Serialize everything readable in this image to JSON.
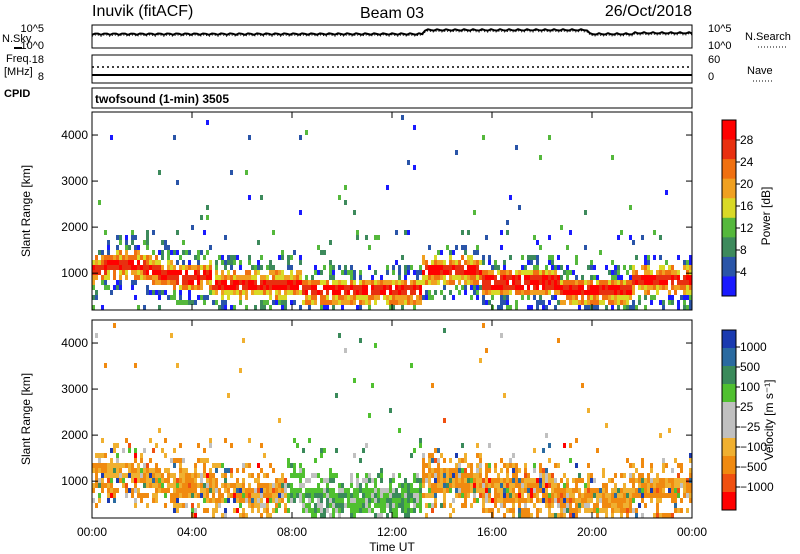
{
  "header": {
    "station": "Inuvik (fitACF)",
    "beam": "Beam 03",
    "date": "26/Oct/2018"
  },
  "noise_panel": {
    "left_label": "N.Sky",
    "left_ticks": [
      "10^5",
      "10^0"
    ],
    "right_label": "N.Search",
    "right_ticks": [
      "10^5",
      "10^0"
    ]
  },
  "freq_panel": {
    "left_label_1": "Freq.",
    "left_label_2": "[MHz]",
    "left_ticks": [
      "18",
      "8"
    ],
    "cpid_label": "CPID",
    "right_label": "Nave",
    "right_ticks": [
      "60",
      "0"
    ]
  },
  "program": "twofsound (1-min) 3505",
  "colors": {
    "power_scale": [
      "#1a1aff",
      "#2a55a8",
      "#3d8a5c",
      "#55b83c",
      "#d9d926",
      "#f0a020",
      "#f07010",
      "#e83010",
      "#ff0000"
    ],
    "velocity_scale": [
      "#ff0000",
      "#f05010",
      "#f08a10",
      "#f0b030",
      "#c0c0c0",
      "#c0c0c0",
      "#50c030",
      "#3a8a5a",
      "#2a6aa0",
      "#1a3ab0"
    ]
  },
  "chart_data": [
    {
      "type": "heatmap",
      "quantity": "Power",
      "ylabel": "Slant Range [km]",
      "y_ticks": [
        "1000",
        "2000",
        "3000",
        "4000"
      ],
      "ylim": [
        200,
        4500
      ],
      "x_ticks": [
        "00:00",
        "04:00",
        "08:00",
        "12:00",
        "16:00",
        "20:00",
        "00:00"
      ],
      "colorbar_label": "Power [dB]",
      "colorbar_ticks": [
        "4",
        "8",
        "12",
        "16",
        "20",
        "24",
        "28"
      ],
      "clim": [
        0,
        32
      ]
    },
    {
      "type": "heatmap",
      "quantity": "Velocity",
      "ylabel": "Slant Range [km]",
      "y_ticks": [
        "1000",
        "2000",
        "3000",
        "4000"
      ],
      "ylim": [
        200,
        4500
      ],
      "x_ticks": [
        "00:00",
        "04:00",
        "08:00",
        "12:00",
        "16:00",
        "20:00",
        "00:00"
      ],
      "xlabel": "Time UT",
      "colorbar_label": "Velocity [m s⁻¹]",
      "colorbar_ticks": [
        "1000",
        "500",
        "100",
        "25",
        "−25",
        "−100",
        "−500",
        "−1000"
      ]
    }
  ]
}
